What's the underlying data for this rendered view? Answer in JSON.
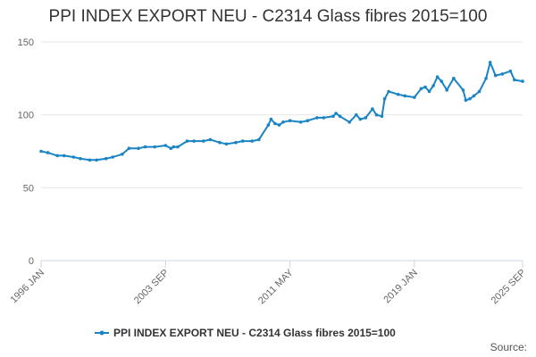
{
  "chart_data": {
    "type": "line",
    "title": "PPI INDEX EXPORT NEU - C2314 Glass fibres 2015=100",
    "xlabel": "",
    "ylabel": "",
    "ylim": [
      0,
      150
    ],
    "y_ticks": [
      "0",
      "50",
      "100",
      "150"
    ],
    "x_ticks": [
      "1996 JAN",
      "2003 SEP",
      "2011 MAY",
      "2019 JAN",
      "2025 SEP"
    ],
    "xlim": [
      "1996 JAN",
      "2025 SEP"
    ],
    "grid": "horizontal",
    "legend_position": "bottom-center",
    "series_color": "#1a84c4",
    "credits": "Source:",
    "series": [
      {
        "name": "PPI INDEX EXPORT NEU - C2314 Glass fibres 2015=100",
        "x": [
          "1996-01",
          "1996-06",
          "1997-01",
          "1997-06",
          "1998-01",
          "1998-06",
          "1999-01",
          "1999-06",
          "2000-01",
          "2000-06",
          "2001-01",
          "2001-06",
          "2002-01",
          "2002-06",
          "2003-01",
          "2003-09",
          "2004-01",
          "2004-03",
          "2004-06",
          "2005-01",
          "2005-06",
          "2006-01",
          "2006-06",
          "2007-01",
          "2007-06",
          "2008-01",
          "2008-06",
          "2009-01",
          "2009-06",
          "2010-01",
          "2010-03",
          "2010-06",
          "2010-09",
          "2010-12",
          "2011-05",
          "2012-01",
          "2012-06",
          "2013-01",
          "2013-06",
          "2014-01",
          "2014-03",
          "2014-06",
          "2015-01",
          "2015-06",
          "2015-09",
          "2016-01",
          "2016-06",
          "2016-09",
          "2017-01",
          "2017-03",
          "2017-06",
          "2018-01",
          "2018-06",
          "2019-01",
          "2019-06",
          "2019-09",
          "2019-12",
          "2020-03",
          "2020-06",
          "2020-09",
          "2021-01",
          "2021-06",
          "2022-01",
          "2022-03",
          "2022-06",
          "2022-09",
          "2023-01",
          "2023-06",
          "2023-09",
          "2024-01",
          "2024-06",
          "2024-12",
          "2025-03",
          "2025-09"
        ],
        "values": [
          75,
          74,
          72,
          72,
          71,
          70,
          69,
          69,
          70,
          71,
          73,
          77,
          77,
          78,
          78,
          79,
          77,
          78,
          78,
          82,
          82,
          82,
          83,
          81,
          80,
          81,
          82,
          82,
          83,
          93,
          97,
          94,
          93,
          95,
          96,
          95,
          96,
          98,
          98,
          99,
          101,
          99,
          95,
          100,
          97,
          98,
          104,
          100,
          99,
          111,
          116,
          114,
          113,
          112,
          118,
          119,
          116,
          120,
          126,
          123,
          117,
          125,
          117,
          110,
          111,
          113,
          116,
          125,
          136,
          127,
          128,
          130,
          124,
          123
        ]
      }
    ]
  }
}
